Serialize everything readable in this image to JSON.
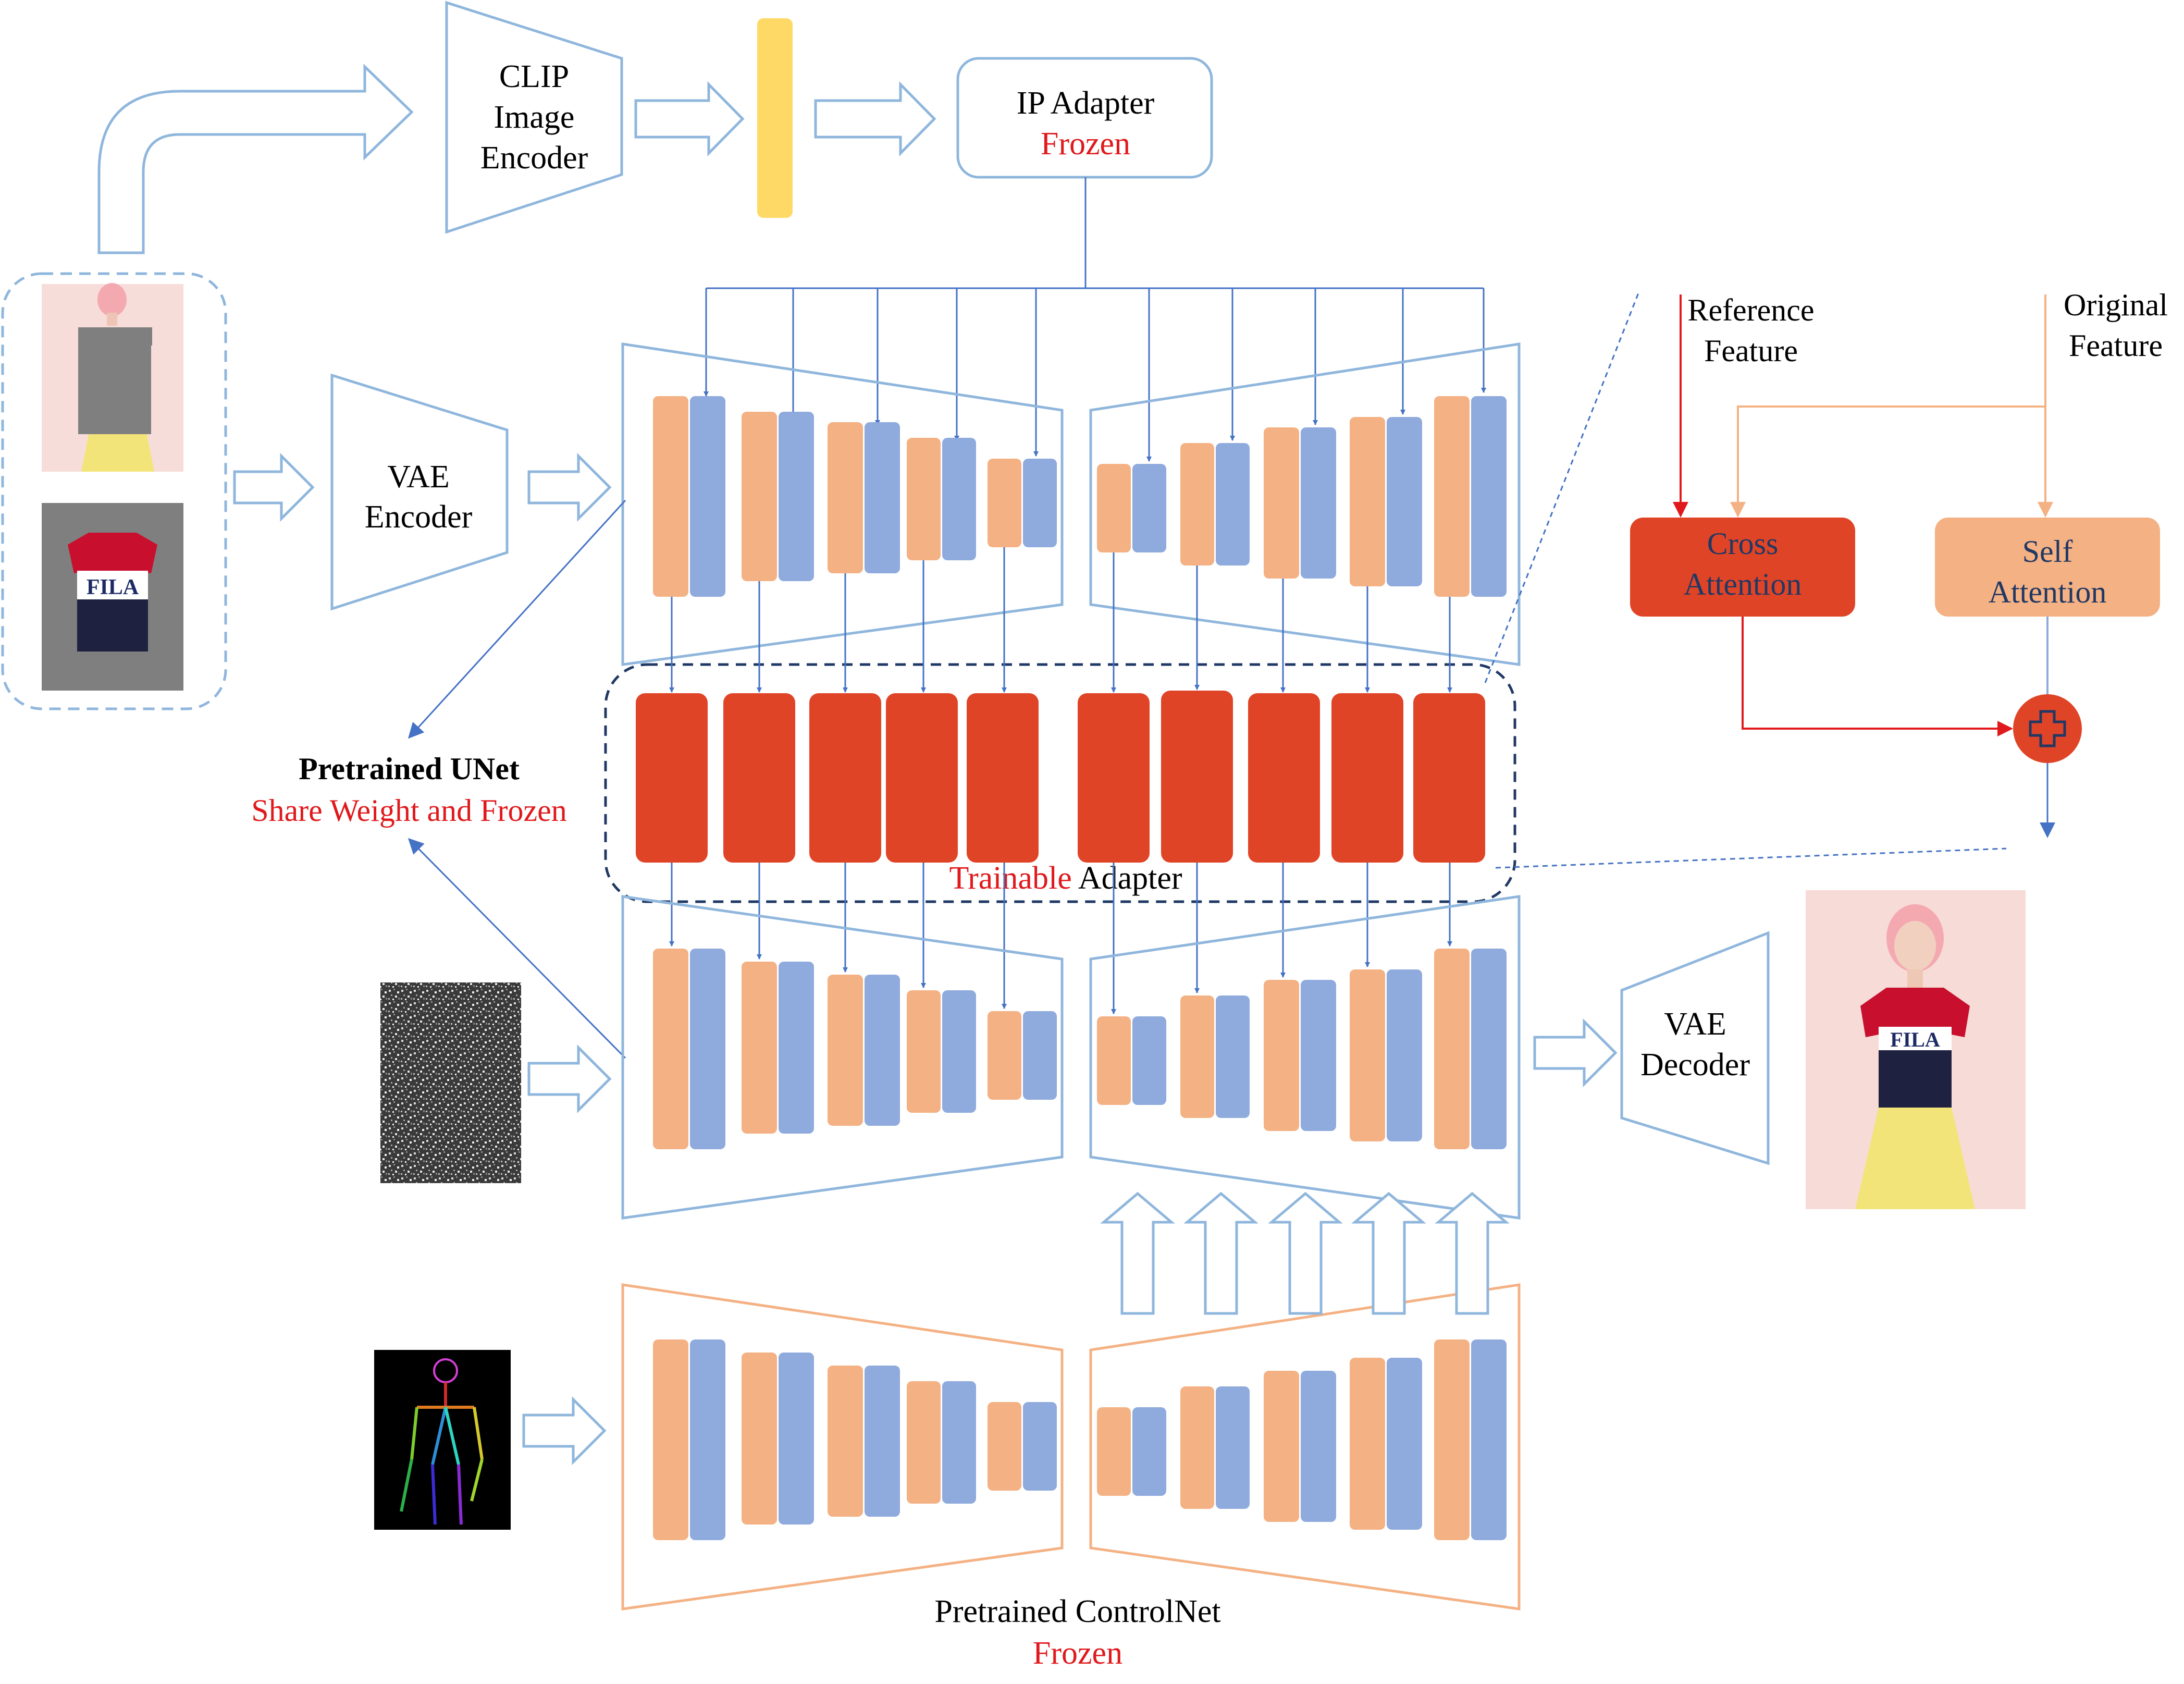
{
  "clip_encoder": {
    "line1": "CLIP",
    "line2": "Image",
    "line3": "Encoder"
  },
  "ip_adapter": {
    "title": "IP Adapter",
    "status": "Frozen"
  },
  "vae_encoder": {
    "line1": "VAE",
    "line2": "Encoder"
  },
  "vae_decoder": {
    "line1": "VAE",
    "line2": "Decoder"
  },
  "unet_label": {
    "title": "Pretrained UNet",
    "subtitle": "Share Weight and Frozen"
  },
  "adapter_label": {
    "prefix": "Trainable",
    "suffix": " Adapter"
  },
  "controlnet_label": {
    "title": "Pretrained ControlNet",
    "status": "Frozen"
  },
  "attention_detail": {
    "reference_line1": "Reference",
    "reference_line2": "Feature",
    "original_line1": "Original",
    "original_line2": "Feature",
    "cross_line1": "Cross",
    "cross_line2": "Attention",
    "self_line1": "Self",
    "self_line2": "Attention"
  },
  "garment_logo": "FILA",
  "colors": {
    "blue_outline": "#8fb6dc",
    "arrow_blue": "#4472c4",
    "peach": "#f4b183",
    "lavender": "#8faadc",
    "adapter_red": "#e04427",
    "frozen_red": "#e0191c",
    "yellow_token": "#ffd966"
  }
}
